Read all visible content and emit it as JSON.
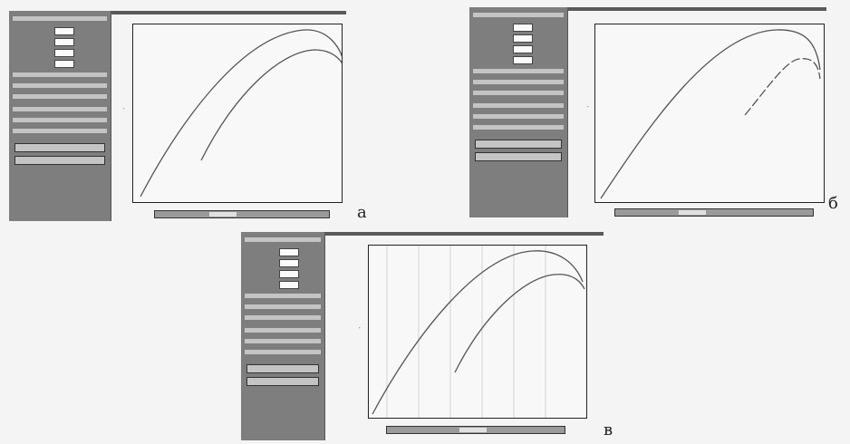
{
  "figure": {
    "captions": [
      "а",
      "б",
      "в"
    ]
  },
  "panels": [
    {
      "id": "a",
      "side_rows": 11,
      "side_buttons": 2,
      "chart": {
        "type": "line",
        "curves": 2,
        "grid": false
      }
    },
    {
      "id": "b",
      "side_rows": 11,
      "side_buttons": 2,
      "chart": {
        "type": "line",
        "curves": 2,
        "grid": false,
        "second_curve_dashed": true
      }
    },
    {
      "id": "v",
      "side_rows": 11,
      "side_buttons": 2,
      "chart": {
        "type": "line",
        "curves": 2,
        "grid": true
      }
    }
  ],
  "colors": {
    "sidebar": "#7e7e7e",
    "plot_background": "#f8f8f8",
    "curve": "#555555"
  }
}
